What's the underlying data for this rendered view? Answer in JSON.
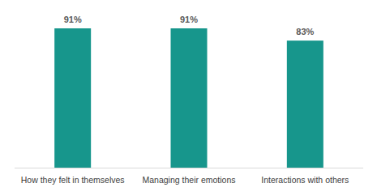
{
  "chart_data": {
    "type": "bar",
    "categories": [
      "How they felt in themselves",
      "Managing their emotions",
      "Interactions with others"
    ],
    "values": [
      91,
      91,
      83
    ],
    "value_labels": [
      "91%",
      "91%",
      "83%"
    ],
    "color": "#17968c",
    "ylim": [
      0,
      100
    ],
    "data_labels": true,
    "tick_labels": "x",
    "grid": false
  }
}
